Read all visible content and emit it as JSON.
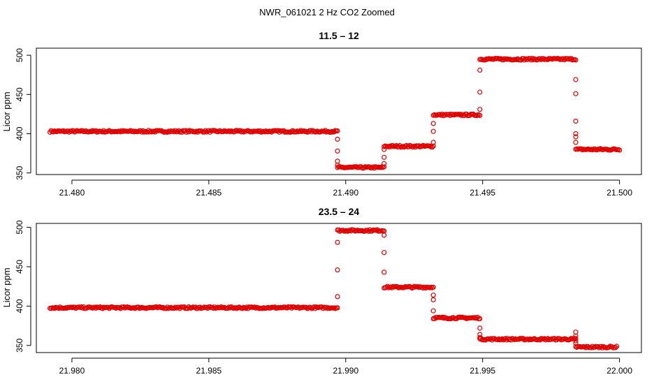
{
  "figure": {
    "title": "NWR_061021  2 Hz CO2 Zoomed"
  },
  "colors": {
    "points": "#e00000",
    "axes": "#000000",
    "background": "#ffffff"
  },
  "chart_data": [
    {
      "type": "scatter",
      "title": "11.5 – 12",
      "xlabel": "",
      "ylabel": "Licor ppm",
      "xlim": [
        21.4787,
        21.5008
      ],
      "ylim": [
        348,
        509
      ],
      "xticks": [
        21.48,
        21.485,
        21.49,
        21.495,
        21.5
      ],
      "xtick_labels": [
        "21.480",
        "21.485",
        "21.490",
        "21.495",
        "21.500"
      ],
      "yticks": [
        350,
        400,
        450,
        500
      ],
      "ytick_labels": [
        "350",
        "400",
        "450",
        "500"
      ],
      "grid": false,
      "legend": "none",
      "series": [
        {
          "marker": "open-circle",
          "segments": [
            {
              "x0": 21.4792,
              "x1": 21.4897,
              "y": 403
            },
            {
              "x0": 21.4897,
              "x1": 21.4914,
              "y": 357
            },
            {
              "x0": 21.4914,
              "x1": 21.4932,
              "y": 384
            },
            {
              "x0": 21.4932,
              "x1": 21.4949,
              "y": 424
            },
            {
              "x0": 21.4949,
              "x1": 21.4984,
              "y": 495
            },
            {
              "x0": 21.4984,
              "x1": 21.5,
              "y": 380
            }
          ],
          "transitions": [
            {
              "x": 21.4897,
              "y": [
                393,
                378,
                365,
                360
              ]
            },
            {
              "x": 21.4914,
              "y": [
                362,
                370,
                380
              ]
            },
            {
              "x": 21.4932,
              "y": [
                389,
                403,
                413
              ]
            },
            {
              "x": 21.4949,
              "y": [
                431,
                453,
                481
              ]
            },
            {
              "x": 21.4984,
              "y": [
                469,
                451,
                416,
                400,
                396,
                389
              ]
            }
          ]
        }
      ]
    },
    {
      "type": "scatter",
      "title": "23.5 – 24",
      "xlabel": "",
      "ylabel": "Licor ppm",
      "xlim": [
        21.9787,
        22.0008
      ],
      "ylim": [
        341,
        505
      ],
      "xticks": [
        21.98,
        21.985,
        21.99,
        21.995,
        22.0
      ],
      "xtick_labels": [
        "21.980",
        "21.985",
        "21.990",
        "21.995",
        "22.000"
      ],
      "yticks": [
        350,
        400,
        450,
        500
      ],
      "ytick_labels": [
        "350",
        "400",
        "450",
        "500"
      ],
      "grid": false,
      "legend": "none",
      "series": [
        {
          "marker": "open-circle",
          "segments": [
            {
              "x0": 21.9792,
              "x1": 21.9897,
              "y": 398
            },
            {
              "x0": 21.9897,
              "x1": 21.9914,
              "y": 496
            },
            {
              "x0": 21.9914,
              "x1": 21.9932,
              "y": 424
            },
            {
              "x0": 21.9932,
              "x1": 21.9949,
              "y": 385
            },
            {
              "x0": 21.9949,
              "x1": 21.9984,
              "y": 358
            },
            {
              "x0": 21.9984,
              "x1": 21.9999,
              "y": 348
            }
          ],
          "transitions": [
            {
              "x": 21.9897,
              "y": [
                412,
                446,
                481
              ]
            },
            {
              "x": 21.9914,
              "y": [
                490,
                468,
                443
              ]
            },
            {
              "x": 21.9932,
              "y": [
                414,
                408,
                394
              ]
            },
            {
              "x": 21.9949,
              "y": [
                372,
                364,
                360
              ]
            },
            {
              "x": 21.9984,
              "y": [
                367,
                362,
                356,
                353
              ]
            }
          ]
        }
      ]
    }
  ]
}
